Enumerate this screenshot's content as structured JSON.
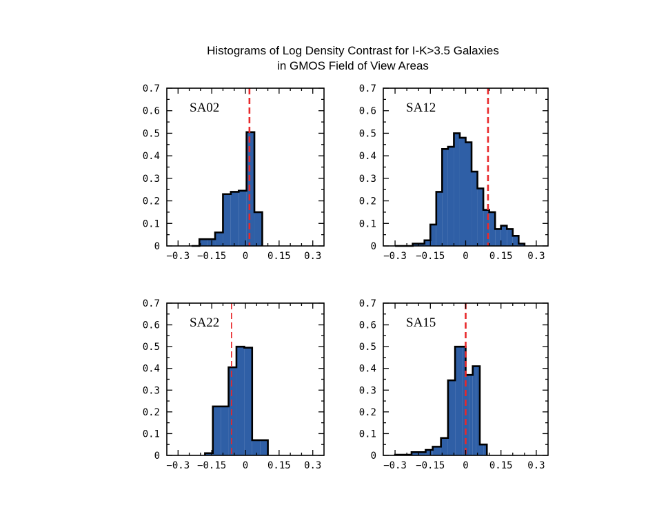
{
  "title": {
    "line1": "Histograms of Log Density Contrast for I-K>3.5 Galaxies",
    "line2": "in GMOS Field of View Areas"
  },
  "colors": {
    "bar_fill": "#2f5fa6",
    "bar_stroke": "#000000",
    "marker_line": "#e8282a"
  },
  "chart_data": [
    {
      "type": "bar",
      "panel_label": "SA02",
      "xlim": [
        -0.35,
        0.35
      ],
      "ylim": [
        0,
        0.7
      ],
      "x_ticks": [
        -0.3,
        -0.15,
        0,
        0.15,
        0.3
      ],
      "x_tick_labels": [
        "−0.3",
        "−0.15",
        "0",
        "0.15",
        "0.3"
      ],
      "y_ticks": [
        0,
        0.1,
        0.2,
        0.3,
        0.4,
        0.5,
        0.6,
        0.7
      ],
      "y_tick_labels": [
        "0",
        "0.1",
        "0.2",
        "0.3",
        "0.4",
        "0.5",
        "0.6",
        "0.7"
      ],
      "bin_edges": [
        -0.24,
        -0.205,
        -0.17,
        -0.135,
        -0.1,
        -0.065,
        -0.03,
        0.005,
        0.04,
        0.075
      ],
      "values": [
        0.0,
        0.03,
        0.03,
        0.06,
        0.23,
        0.24,
        0.245,
        0.505,
        0.15
      ],
      "marker_x": 0.018,
      "marker_dashed": true
    },
    {
      "type": "bar",
      "panel_label": "SA12",
      "xlim": [
        -0.35,
        0.35
      ],
      "ylim": [
        0,
        0.7
      ],
      "x_ticks": [
        -0.3,
        -0.15,
        0,
        0.15,
        0.3
      ],
      "x_tick_labels": [
        "−0.3",
        "−0.15",
        "0",
        "0.15",
        "0.3"
      ],
      "y_ticks": [
        0,
        0.1,
        0.2,
        0.3,
        0.4,
        0.5,
        0.6,
        0.7
      ],
      "y_tick_labels": [
        "0",
        "0.1",
        "0.2",
        "0.3",
        "0.4",
        "0.5",
        "0.6",
        "0.7"
      ],
      "bin_edges": [
        -0.3,
        -0.275,
        -0.25,
        -0.225,
        -0.2,
        -0.175,
        -0.15,
        -0.125,
        -0.1,
        -0.075,
        -0.05,
        -0.025,
        0.0,
        0.025,
        0.05,
        0.075,
        0.1,
        0.125,
        0.15,
        0.175,
        0.2,
        0.225,
        0.25
      ],
      "values": [
        0.0,
        0.0,
        0.0,
        0.01,
        0.01,
        0.025,
        0.095,
        0.24,
        0.43,
        0.44,
        0.5,
        0.48,
        0.46,
        0.33,
        0.255,
        0.16,
        0.15,
        0.075,
        0.09,
        0.075,
        0.045,
        0.01
      ],
      "marker_x": 0.095,
      "marker_dashed": true
    },
    {
      "type": "bar",
      "panel_label": "SA22",
      "xlim": [
        -0.35,
        0.35
      ],
      "ylim": [
        0,
        0.7
      ],
      "x_ticks": [
        -0.3,
        -0.15,
        0,
        0.15,
        0.3
      ],
      "x_tick_labels": [
        "−0.3",
        "−0.15",
        "0",
        "0.15",
        "0.3"
      ],
      "y_ticks": [
        0,
        0.1,
        0.2,
        0.3,
        0.4,
        0.5,
        0.6,
        0.7
      ],
      "y_tick_labels": [
        "0",
        "0.1",
        "0.2",
        "0.3",
        "0.4",
        "0.5",
        "0.6",
        "0.7"
      ],
      "bin_edges": [
        -0.18,
        -0.145,
        -0.11,
        -0.075,
        -0.04,
        -0.005,
        0.03,
        0.065,
        0.1
      ],
      "values": [
        0.01,
        0.225,
        0.225,
        0.405,
        0.5,
        0.495,
        0.07,
        0.07
      ],
      "marker_x": -0.062,
      "marker_dashed": false
    },
    {
      "type": "bar",
      "panel_label": "SA15",
      "xlim": [
        -0.35,
        0.35
      ],
      "ylim": [
        0,
        0.7
      ],
      "x_ticks": [
        -0.3,
        -0.15,
        0,
        0.15,
        0.3
      ],
      "x_tick_labels": [
        "−0.3",
        "−0.15",
        "0",
        "0.15",
        "0.3"
      ],
      "y_ticks": [
        0,
        0.1,
        0.2,
        0.3,
        0.4,
        0.5,
        0.6,
        0.7
      ],
      "y_tick_labels": [
        "0",
        "0.1",
        "0.2",
        "0.3",
        "0.4",
        "0.5",
        "0.6",
        "0.7"
      ],
      "bin_edges": [
        -0.3,
        -0.265,
        -0.23,
        -0.2,
        -0.17,
        -0.14,
        -0.105,
        -0.075,
        -0.045,
        -0.015,
        0.0,
        0.015,
        0.03,
        0.045,
        0.06,
        0.075,
        0.09
      ],
      "values": [
        0.003,
        0.003,
        0.015,
        0.015,
        0.025,
        0.04,
        0.08,
        0.345,
        0.5,
        0.5,
        0.37,
        0.37,
        0.41,
        0.41,
        0.05,
        0.05
      ],
      "marker_x": 0.0,
      "marker_dashed": true
    }
  ]
}
